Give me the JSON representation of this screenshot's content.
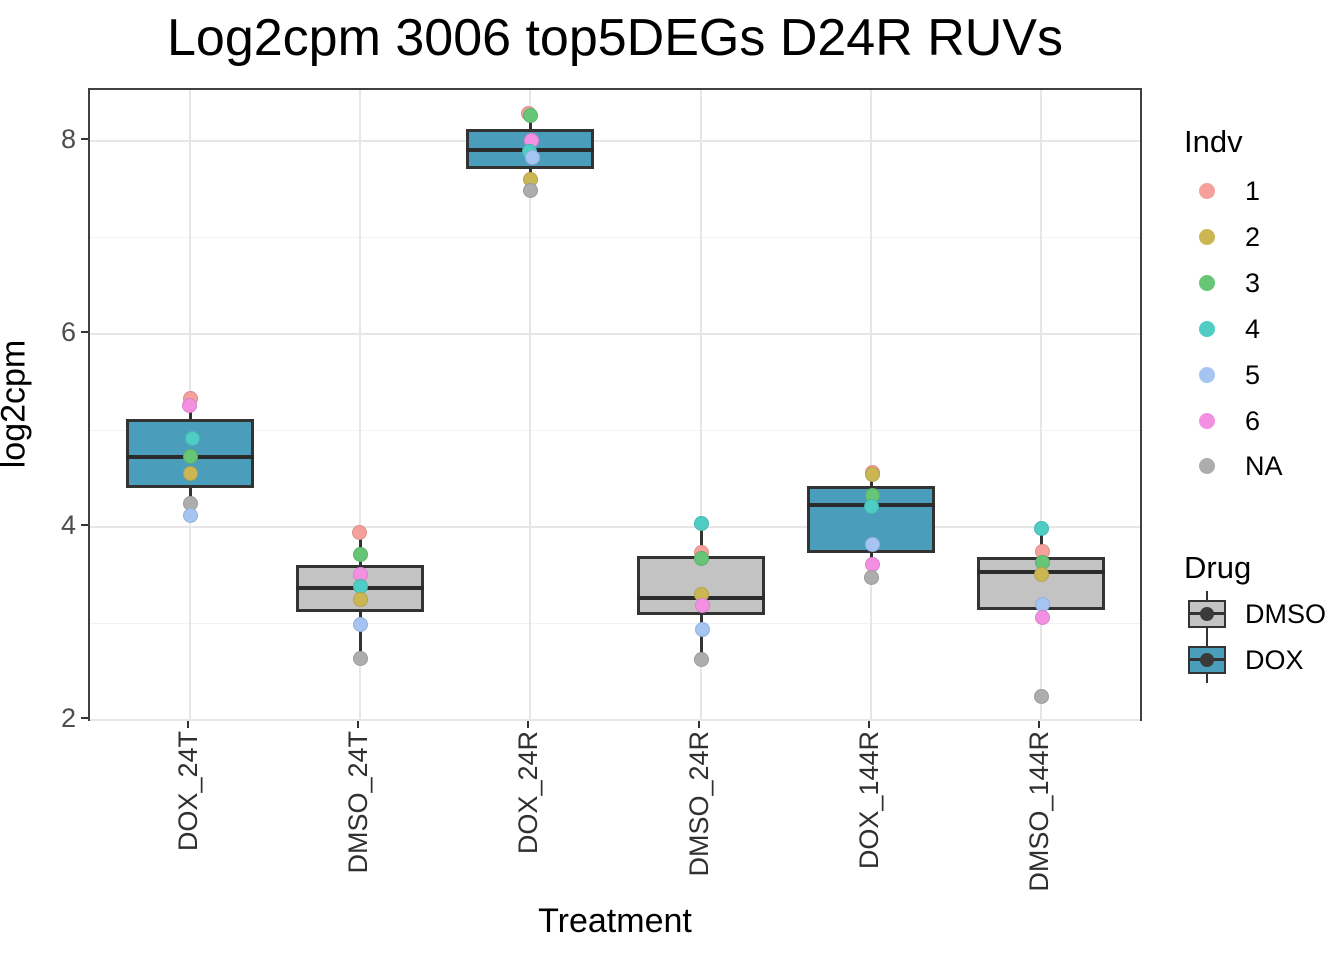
{
  "title": "Log2cpm 3006 top5DEGs D24R RUVs",
  "chart_data": {
    "type": "boxplot",
    "title": "Log2cpm 3006 top5DEGs D24R RUVs",
    "xlabel": "Treatment",
    "ylabel": "log2cpm",
    "ylim": [
      1.97,
      8.53
    ],
    "yticks_major": [
      2,
      4,
      6,
      8
    ],
    "yticks_minor": [
      3,
      5,
      7
    ],
    "grid": true,
    "legend_position": "right",
    "categories": [
      "DOX_24T",
      "DMSO_24T",
      "DOX_24R",
      "DMSO_24R",
      "DOX_144R",
      "DMSO_144R"
    ],
    "groups": [
      {
        "category": "DOX_24T",
        "drug": "DOX",
        "q1": 4.4,
        "median": 4.73,
        "q3": 5.12,
        "whisker_low": 4.12,
        "whisker_high": 5.33,
        "points": [
          {
            "indv": "1",
            "value": 5.33,
            "dx": 0
          },
          {
            "indv": "6",
            "value": 5.26,
            "dx": -1
          },
          {
            "indv": "4",
            "value": 4.92,
            "dx": 2
          },
          {
            "indv": "3",
            "value": 4.73,
            "dx": 0
          },
          {
            "indv": "2",
            "value": 4.55,
            "dx": 0
          },
          {
            "indv": "NA",
            "value": 4.24,
            "dx": 0
          },
          {
            "indv": "5",
            "value": 4.12,
            "dx": 0
          }
        ]
      },
      {
        "category": "DMSO_24T",
        "drug": "DMSO",
        "q1": 3.12,
        "median": 3.37,
        "q3": 3.61,
        "whisker_low": 2.64,
        "whisker_high": 3.94,
        "points": [
          {
            "indv": "1",
            "value": 3.94,
            "dx": -1
          },
          {
            "indv": "3",
            "value": 3.71,
            "dx": 0
          },
          {
            "indv": "6",
            "value": 3.51,
            "dx": 0
          },
          {
            "indv": "4",
            "value": 3.38,
            "dx": 0
          },
          {
            "indv": "2",
            "value": 3.25,
            "dx": 0
          },
          {
            "indv": "5",
            "value": 2.99,
            "dx": 0
          },
          {
            "indv": "NA",
            "value": 2.64,
            "dx": 0
          }
        ]
      },
      {
        "category": "DOX_24R",
        "drug": "DOX",
        "q1": 7.71,
        "median": 7.91,
        "q3": 8.12,
        "whisker_low": 7.49,
        "whisker_high": 8.28,
        "points": [
          {
            "indv": "1",
            "value": 8.29,
            "dx": -2
          },
          {
            "indv": "3",
            "value": 8.26,
            "dx": 0
          },
          {
            "indv": "6",
            "value": 8.01,
            "dx": 1
          },
          {
            "indv": "4",
            "value": 7.89,
            "dx": -1
          },
          {
            "indv": "5",
            "value": 7.83,
            "dx": 2
          },
          {
            "indv": "2",
            "value": 7.6,
            "dx": 0
          },
          {
            "indv": "NA",
            "value": 7.49,
            "dx": 0
          }
        ]
      },
      {
        "category": "DMSO_24R",
        "drug": "DMSO",
        "q1": 3.09,
        "median": 3.26,
        "q3": 3.7,
        "whisker_low": 2.63,
        "whisker_high": 4.04,
        "points": [
          {
            "indv": "4",
            "value": 4.04,
            "dx": 0
          },
          {
            "indv": "1",
            "value": 3.74,
            "dx": 0
          },
          {
            "indv": "3",
            "value": 3.67,
            "dx": 0
          },
          {
            "indv": "2",
            "value": 3.3,
            "dx": 0
          },
          {
            "indv": "6",
            "value": 3.19,
            "dx": 1
          },
          {
            "indv": "5",
            "value": 2.94,
            "dx": 1
          },
          {
            "indv": "NA",
            "value": 2.63,
            "dx": 0
          }
        ]
      },
      {
        "category": "DOX_144R",
        "drug": "DOX",
        "q1": 3.73,
        "median": 4.23,
        "q3": 4.42,
        "whisker_low": 3.48,
        "whisker_high": 4.56,
        "points": [
          {
            "indv": "1",
            "value": 4.56,
            "dx": 1
          },
          {
            "indv": "2",
            "value": 4.54,
            "dx": 1
          },
          {
            "indv": "3",
            "value": 4.33,
            "dx": 1
          },
          {
            "indv": "4",
            "value": 4.21,
            "dx": 0
          },
          {
            "indv": "5",
            "value": 3.82,
            "dx": 1
          },
          {
            "indv": "6",
            "value": 3.61,
            "dx": 1
          },
          {
            "indv": "NA",
            "value": 3.48,
            "dx": 0
          }
        ]
      },
      {
        "category": "DMSO_144R",
        "drug": "DMSO",
        "q1": 3.14,
        "median": 3.53,
        "q3": 3.69,
        "whisker_low": 3.06,
        "whisker_high": 3.98,
        "outliers": [
          {
            "indv": "NA",
            "value": 2.24,
            "dx": 0
          }
        ],
        "points": [
          {
            "indv": "4",
            "value": 3.98,
            "dx": 0
          },
          {
            "indv": "1",
            "value": 3.75,
            "dx": 1
          },
          {
            "indv": "3",
            "value": 3.63,
            "dx": 1
          },
          {
            "indv": "2",
            "value": 3.51,
            "dx": 0
          },
          {
            "indv": "5",
            "value": 3.2,
            "dx": 1
          },
          {
            "indv": "6",
            "value": 3.06,
            "dx": 1
          },
          {
            "indv": "NA",
            "value": 2.24,
            "dx": 0
          }
        ]
      }
    ],
    "legend": {
      "indv": {
        "title": "Indv",
        "entries": [
          {
            "label": "1",
            "color": "#F5A09B"
          },
          {
            "label": "2",
            "color": "#CBB654"
          },
          {
            "label": "3",
            "color": "#67C576"
          },
          {
            "label": "4",
            "color": "#4FCDC5"
          },
          {
            "label": "5",
            "color": "#A6C4F2"
          },
          {
            "label": "6",
            "color": "#F390E2"
          },
          {
            "label": "NA",
            "color": "#ADADAD"
          }
        ]
      },
      "drug": {
        "title": "Drug",
        "entries": [
          {
            "label": "DMSO",
            "color": "#C3C3C3"
          },
          {
            "label": "DOX",
            "color": "#4A9EBC"
          }
        ]
      }
    },
    "colors": {
      "dox_fill": "#4A9EBC",
      "dmso_fill": "#C3C3C3",
      "box_line": "#333333",
      "panel_border": "#404040",
      "grid_major": "#E6E6E6",
      "grid_minor": "#F2F2F2",
      "y_axis_text": "#4D4D4D",
      "x_axis_text": "#303030",
      "point_colors": {
        "1": "#F5A09B",
        "2": "#CBB654",
        "3": "#67C576",
        "4": "#4FCDC5",
        "5": "#A6C4F2",
        "6": "#F390E2",
        "NA": "#ADADAD"
      }
    }
  }
}
